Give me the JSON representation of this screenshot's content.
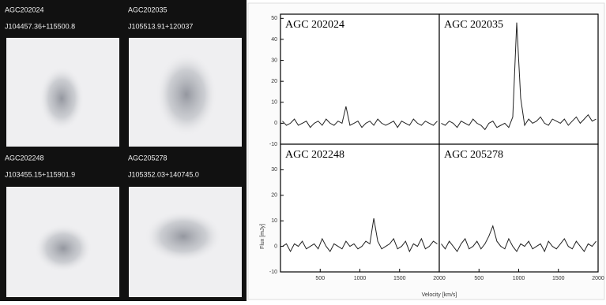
{
  "images": [
    {
      "name": "AGC202024",
      "coords": "J104457.36+115500.8"
    },
    {
      "name": "AGC202035",
      "coords": "J105513.91+120037"
    },
    {
      "name": "AGC202248",
      "coords": "J103455.15+115901.9"
    },
    {
      "name": "AGC205278",
      "coords": "J105352.03+140745.0"
    }
  ],
  "x_label": "Velocity [km/s]",
  "y_label": "Flux [mJy]",
  "chart_data": [
    {
      "type": "line",
      "title": "AGC 202024",
      "color": "#222",
      "x": [
        25,
        75,
        125,
        175,
        225,
        275,
        325,
        375,
        425,
        475,
        525,
        575,
        625,
        675,
        725,
        775,
        825,
        875,
        925,
        975,
        1025,
        1075,
        1125,
        1175,
        1225,
        1275,
        1325,
        1375,
        1425,
        1475,
        1525,
        1575,
        1625,
        1675,
        1725,
        1775,
        1825,
        1875,
        1925,
        1975
      ],
      "values": [
        1,
        -1,
        0,
        2,
        -1,
        0,
        1,
        -2,
        0,
        1,
        -1,
        2,
        0,
        -1,
        1,
        0,
        8,
        -1,
        0,
        1,
        -2,
        0,
        1,
        -1,
        2,
        0,
        -1,
        0,
        1,
        -2,
        1,
        0,
        -1,
        2,
        0,
        -1,
        1,
        0,
        -1,
        1
      ],
      "xlim": [
        0,
        2000
      ],
      "ylim": [
        -10,
        52
      ],
      "yticks": [
        -10,
        0,
        10,
        20,
        30,
        40,
        50
      ]
    },
    {
      "type": "line",
      "title": "AGC 202035",
      "color": "#222",
      "x": [
        25,
        75,
        125,
        175,
        225,
        275,
        325,
        375,
        425,
        475,
        525,
        575,
        625,
        675,
        725,
        775,
        825,
        875,
        925,
        975,
        1025,
        1075,
        1125,
        1175,
        1225,
        1275,
        1325,
        1375,
        1425,
        1475,
        1525,
        1575,
        1625,
        1675,
        1725,
        1775,
        1825,
        1875,
        1925,
        1975
      ],
      "values": [
        0,
        -1,
        1,
        0,
        -2,
        1,
        0,
        -1,
        2,
        0,
        -1,
        -3,
        0,
        1,
        -2,
        -1,
        0,
        -2,
        3,
        48,
        12,
        -1,
        2,
        0,
        1,
        3,
        0,
        -1,
        2,
        1,
        0,
        2,
        -1,
        1,
        3,
        0,
        2,
        4,
        1,
        2
      ],
      "xlim": [
        0,
        2000
      ],
      "ylim": [
        -10,
        52
      ]
    },
    {
      "type": "line",
      "title": "AGC 202248",
      "color": "#222",
      "x": [
        25,
        75,
        125,
        175,
        225,
        275,
        325,
        375,
        425,
        475,
        525,
        575,
        625,
        675,
        725,
        775,
        825,
        875,
        925,
        975,
        1025,
        1075,
        1125,
        1175,
        1225,
        1275,
        1325,
        1375,
        1425,
        1475,
        1525,
        1575,
        1625,
        1675,
        1725,
        1775,
        1825,
        1875,
        1925,
        1975
      ],
      "values": [
        0,
        1,
        -2,
        1,
        0,
        2,
        -1,
        0,
        1,
        -1,
        3,
        0,
        -2,
        1,
        0,
        -1,
        2,
        0,
        1,
        -1,
        0,
        2,
        1,
        11,
        2,
        -1,
        0,
        1,
        3,
        -1,
        0,
        2,
        -2,
        1,
        0,
        3,
        -1,
        0,
        2,
        1
      ],
      "xlim": [
        0,
        2000
      ],
      "ylim": [
        -10,
        40
      ],
      "yticks": [
        -10,
        0,
        10,
        20,
        30
      ],
      "xticks": [
        500,
        1000,
        1500,
        2000
      ]
    },
    {
      "type": "line",
      "title": "AGC 205278",
      "color": "#222",
      "x": [
        25,
        75,
        125,
        175,
        225,
        275,
        325,
        375,
        425,
        475,
        525,
        575,
        625,
        675,
        725,
        775,
        825,
        875,
        925,
        975,
        1025,
        1075,
        1125,
        1175,
        1225,
        1275,
        1325,
        1375,
        1425,
        1475,
        1525,
        1575,
        1625,
        1675,
        1725,
        1775,
        1825,
        1875,
        1925,
        1975
      ],
      "values": [
        1,
        -1,
        2,
        0,
        -2,
        1,
        3,
        -1,
        0,
        2,
        -1,
        1,
        4,
        8,
        2,
        0,
        -1,
        3,
        0,
        -2,
        1,
        0,
        2,
        -1,
        0,
        1,
        -2,
        2,
        0,
        -1,
        1,
        3,
        0,
        -1,
        2,
        0,
        -2,
        1,
        0,
        2
      ],
      "xlim": [
        0,
        2000
      ],
      "ylim": [
        -10,
        40
      ],
      "xticks": [
        500,
        1000,
        1500,
        2000
      ]
    }
  ]
}
